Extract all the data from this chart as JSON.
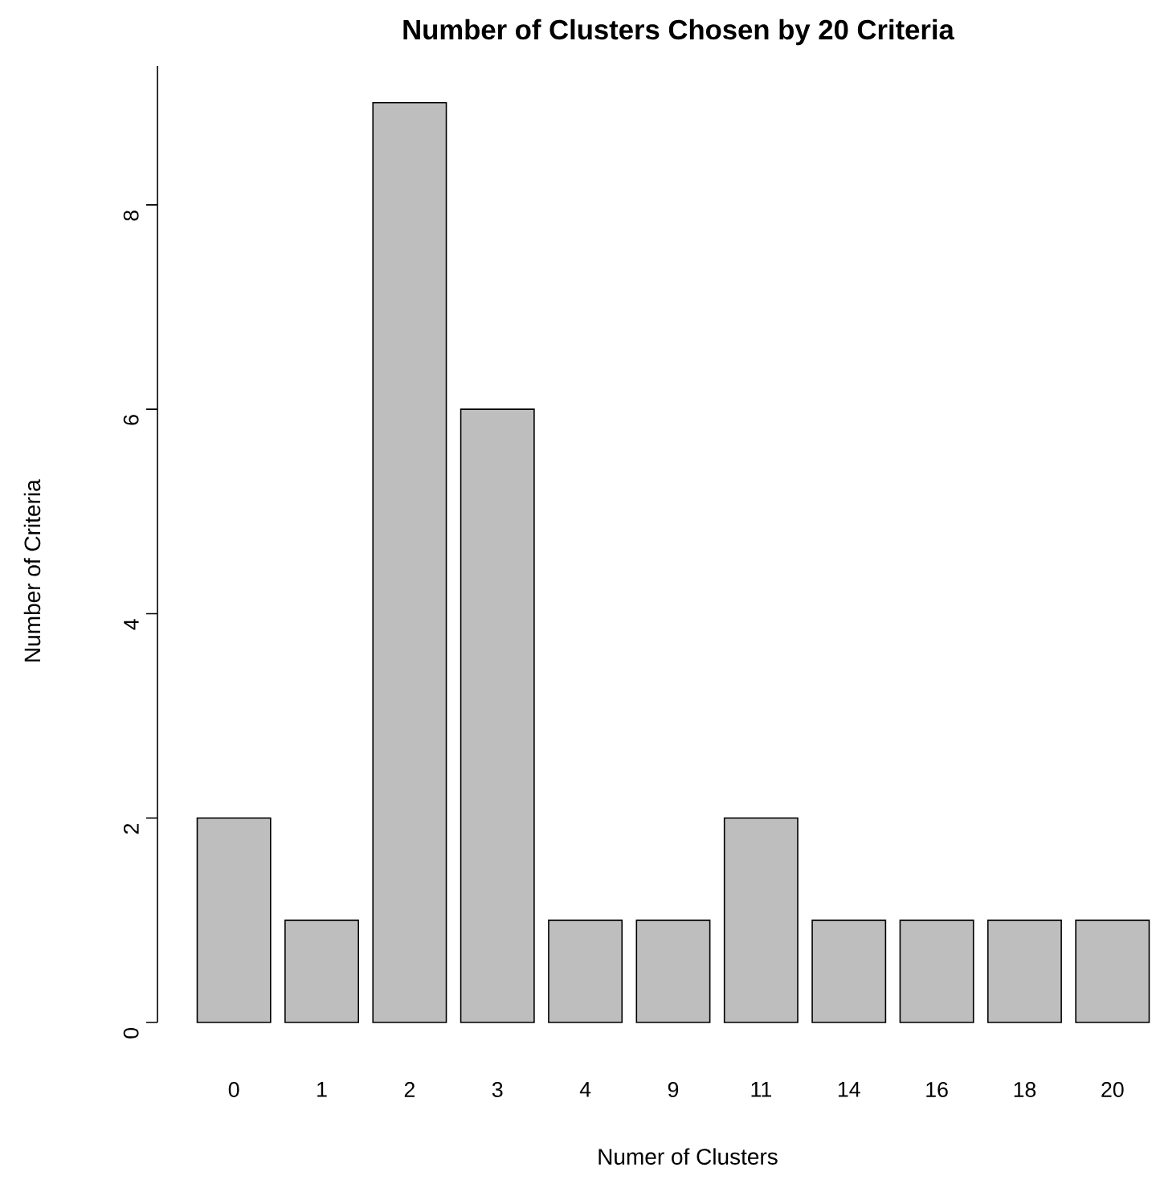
{
  "chart_data": {
    "type": "bar",
    "title": "Number of Clusters Chosen by 20 Criteria",
    "xlabel": "Numer of Clusters",
    "ylabel": "Number of Criteria",
    "categories": [
      "0",
      "1",
      "2",
      "3",
      "4",
      "9",
      "11",
      "14",
      "16",
      "18",
      "20"
    ],
    "values": [
      2,
      1,
      9,
      6,
      1,
      1,
      2,
      1,
      1,
      1,
      1
    ],
    "color": "#bebebe",
    "ylim": [
      0,
      9.36
    ],
    "yticks": [
      0,
      2,
      4,
      6,
      8
    ],
    "grid": false
  }
}
